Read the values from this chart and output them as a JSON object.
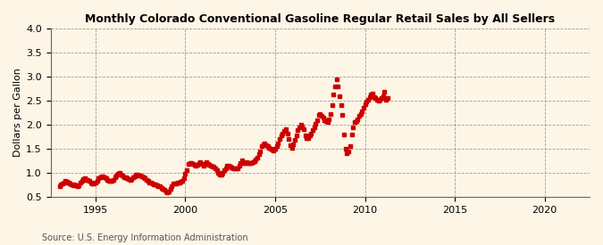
{
  "title": "Monthly Colorado Conventional Gasoline Regular Retail Sales by All Sellers",
  "ylabel": "Dollars per Gallon",
  "source": "Source: U.S. Energy Information Administration",
  "bg_color": "#fdf5e6",
  "marker_color": "#cc0000",
  "xlim": [
    1992.5,
    2022.5
  ],
  "ylim": [
    0.5,
    4.0
  ],
  "yticks": [
    0.5,
    1.0,
    1.5,
    2.0,
    2.5,
    3.0,
    3.5,
    4.0
  ],
  "xticks": [
    1995,
    2000,
    2005,
    2010,
    2015,
    2020
  ],
  "data_decimal": [
    [
      1993.0,
      0.72
    ],
    [
      1993.08,
      0.76
    ],
    [
      1993.17,
      0.78
    ],
    [
      1993.25,
      0.8
    ],
    [
      1993.33,
      0.83
    ],
    [
      1993.42,
      0.82
    ],
    [
      1993.5,
      0.8
    ],
    [
      1993.58,
      0.78
    ],
    [
      1993.67,
      0.76
    ],
    [
      1993.75,
      0.75
    ],
    [
      1993.83,
      0.76
    ],
    [
      1993.92,
      0.74
    ],
    [
      1994.0,
      0.73
    ],
    [
      1994.08,
      0.75
    ],
    [
      1994.17,
      0.79
    ],
    [
      1994.25,
      0.83
    ],
    [
      1994.33,
      0.87
    ],
    [
      1994.42,
      0.88
    ],
    [
      1994.5,
      0.86
    ],
    [
      1994.58,
      0.85
    ],
    [
      1994.67,
      0.83
    ],
    [
      1994.75,
      0.8
    ],
    [
      1994.83,
      0.78
    ],
    [
      1994.92,
      0.77
    ],
    [
      1995.0,
      0.8
    ],
    [
      1995.08,
      0.84
    ],
    [
      1995.17,
      0.88
    ],
    [
      1995.25,
      0.91
    ],
    [
      1995.33,
      0.93
    ],
    [
      1995.42,
      0.92
    ],
    [
      1995.5,
      0.9
    ],
    [
      1995.58,
      0.88
    ],
    [
      1995.67,
      0.85
    ],
    [
      1995.75,
      0.84
    ],
    [
      1995.83,
      0.84
    ],
    [
      1995.92,
      0.83
    ],
    [
      1996.0,
      0.86
    ],
    [
      1996.08,
      0.9
    ],
    [
      1996.17,
      0.95
    ],
    [
      1996.25,
      0.99
    ],
    [
      1996.33,
      1.0
    ],
    [
      1996.42,
      0.97
    ],
    [
      1996.5,
      0.94
    ],
    [
      1996.58,
      0.91
    ],
    [
      1996.67,
      0.9
    ],
    [
      1996.75,
      0.88
    ],
    [
      1996.83,
      0.87
    ],
    [
      1996.92,
      0.85
    ],
    [
      1997.0,
      0.87
    ],
    [
      1997.08,
      0.9
    ],
    [
      1997.17,
      0.92
    ],
    [
      1997.25,
      0.96
    ],
    [
      1997.33,
      0.97
    ],
    [
      1997.42,
      0.95
    ],
    [
      1997.5,
      0.94
    ],
    [
      1997.58,
      0.93
    ],
    [
      1997.67,
      0.91
    ],
    [
      1997.75,
      0.88
    ],
    [
      1997.83,
      0.86
    ],
    [
      1997.92,
      0.83
    ],
    [
      1998.0,
      0.8
    ],
    [
      1998.08,
      0.79
    ],
    [
      1998.17,
      0.78
    ],
    [
      1998.25,
      0.76
    ],
    [
      1998.33,
      0.76
    ],
    [
      1998.42,
      0.75
    ],
    [
      1998.5,
      0.73
    ],
    [
      1998.58,
      0.72
    ],
    [
      1998.67,
      0.69
    ],
    [
      1998.75,
      0.67
    ],
    [
      1998.83,
      0.65
    ],
    [
      1998.92,
      0.62
    ],
    [
      1999.0,
      0.6
    ],
    [
      1999.08,
      0.62
    ],
    [
      1999.17,
      0.66
    ],
    [
      1999.25,
      0.72
    ],
    [
      1999.33,
      0.77
    ],
    [
      1999.42,
      0.78
    ],
    [
      1999.5,
      0.78
    ],
    [
      1999.58,
      0.79
    ],
    [
      1999.67,
      0.8
    ],
    [
      1999.75,
      0.82
    ],
    [
      1999.83,
      0.84
    ],
    [
      1999.92,
      0.88
    ],
    [
      2000.0,
      0.98
    ],
    [
      2000.08,
      1.06
    ],
    [
      2000.17,
      1.18
    ],
    [
      2000.25,
      1.2
    ],
    [
      2000.33,
      1.21
    ],
    [
      2000.42,
      1.18
    ],
    [
      2000.5,
      1.16
    ],
    [
      2000.58,
      1.15
    ],
    [
      2000.67,
      1.17
    ],
    [
      2000.75,
      1.2
    ],
    [
      2000.83,
      1.22
    ],
    [
      2000.92,
      1.18
    ],
    [
      2001.0,
      1.14
    ],
    [
      2001.08,
      1.18
    ],
    [
      2001.17,
      1.22
    ],
    [
      2001.25,
      1.19
    ],
    [
      2001.33,
      1.17
    ],
    [
      2001.42,
      1.15
    ],
    [
      2001.5,
      1.13
    ],
    [
      2001.58,
      1.13
    ],
    [
      2001.67,
      1.1
    ],
    [
      2001.75,
      1.05
    ],
    [
      2001.83,
      1.0
    ],
    [
      2001.92,
      0.97
    ],
    [
      2002.0,
      0.97
    ],
    [
      2002.08,
      1.0
    ],
    [
      2002.17,
      1.05
    ],
    [
      2002.25,
      1.1
    ],
    [
      2002.33,
      1.14
    ],
    [
      2002.42,
      1.15
    ],
    [
      2002.5,
      1.13
    ],
    [
      2002.58,
      1.12
    ],
    [
      2002.67,
      1.1
    ],
    [
      2002.75,
      1.09
    ],
    [
      2002.83,
      1.09
    ],
    [
      2002.92,
      1.1
    ],
    [
      2003.0,
      1.14
    ],
    [
      2003.08,
      1.2
    ],
    [
      2003.17,
      1.26
    ],
    [
      2003.25,
      1.21
    ],
    [
      2003.33,
      1.2
    ],
    [
      2003.42,
      1.23
    ],
    [
      2003.5,
      1.21
    ],
    [
      2003.58,
      1.2
    ],
    [
      2003.67,
      1.2
    ],
    [
      2003.75,
      1.22
    ],
    [
      2003.83,
      1.24
    ],
    [
      2003.92,
      1.28
    ],
    [
      2004.0,
      1.32
    ],
    [
      2004.08,
      1.38
    ],
    [
      2004.17,
      1.45
    ],
    [
      2004.25,
      1.55
    ],
    [
      2004.33,
      1.6
    ],
    [
      2004.42,
      1.62
    ],
    [
      2004.5,
      1.58
    ],
    [
      2004.58,
      1.55
    ],
    [
      2004.67,
      1.52
    ],
    [
      2004.75,
      1.5
    ],
    [
      2004.83,
      1.49
    ],
    [
      2004.92,
      1.46
    ],
    [
      2005.0,
      1.5
    ],
    [
      2005.08,
      1.55
    ],
    [
      2005.17,
      1.62
    ],
    [
      2005.25,
      1.7
    ],
    [
      2005.33,
      1.78
    ],
    [
      2005.42,
      1.82
    ],
    [
      2005.5,
      1.87
    ],
    [
      2005.58,
      1.9
    ],
    [
      2005.67,
      1.82
    ],
    [
      2005.75,
      1.7
    ],
    [
      2005.83,
      1.58
    ],
    [
      2005.92,
      1.52
    ],
    [
      2006.0,
      1.6
    ],
    [
      2006.08,
      1.68
    ],
    [
      2006.17,
      1.77
    ],
    [
      2006.25,
      1.88
    ],
    [
      2006.33,
      1.95
    ],
    [
      2006.42,
      2.0
    ],
    [
      2006.5,
      1.97
    ],
    [
      2006.58,
      1.9
    ],
    [
      2006.67,
      1.78
    ],
    [
      2006.75,
      1.72
    ],
    [
      2006.83,
      1.73
    ],
    [
      2006.92,
      1.77
    ],
    [
      2007.0,
      1.82
    ],
    [
      2007.08,
      1.88
    ],
    [
      2007.17,
      1.95
    ],
    [
      2007.25,
      2.02
    ],
    [
      2007.33,
      2.1
    ],
    [
      2007.42,
      2.2
    ],
    [
      2007.5,
      2.22
    ],
    [
      2007.58,
      2.18
    ],
    [
      2007.67,
      2.14
    ],
    [
      2007.75,
      2.1
    ],
    [
      2007.83,
      2.08
    ],
    [
      2007.92,
      2.05
    ],
    [
      2008.0,
      2.12
    ],
    [
      2008.08,
      2.22
    ],
    [
      2008.17,
      2.4
    ],
    [
      2008.25,
      2.62
    ],
    [
      2008.33,
      2.8
    ],
    [
      2008.42,
      2.95
    ],
    [
      2008.5,
      2.8
    ],
    [
      2008.58,
      2.6
    ],
    [
      2008.67,
      2.4
    ],
    [
      2008.75,
      2.2
    ],
    [
      2008.83,
      1.8
    ],
    [
      2008.92,
      1.5
    ],
    [
      2009.0,
      1.4
    ],
    [
      2009.08,
      1.45
    ],
    [
      2009.17,
      1.55
    ],
    [
      2009.25,
      1.8
    ],
    [
      2009.33,
      1.95
    ],
    [
      2009.42,
      2.05
    ],
    [
      2009.5,
      2.08
    ],
    [
      2009.58,
      2.12
    ],
    [
      2009.67,
      2.18
    ],
    [
      2009.75,
      2.22
    ],
    [
      2009.83,
      2.28
    ],
    [
      2009.92,
      2.35
    ],
    [
      2010.0,
      2.42
    ],
    [
      2010.08,
      2.48
    ],
    [
      2010.17,
      2.52
    ],
    [
      2010.25,
      2.58
    ],
    [
      2010.33,
      2.62
    ],
    [
      2010.42,
      2.65
    ],
    [
      2010.5,
      2.58
    ],
    [
      2010.58,
      2.55
    ],
    [
      2010.67,
      2.52
    ],
    [
      2010.75,
      2.5
    ],
    [
      2010.83,
      2.52
    ],
    [
      2010.92,
      2.55
    ],
    [
      2011.0,
      2.6
    ],
    [
      2011.08,
      2.68
    ],
    [
      2011.17,
      2.52
    ],
    [
      2011.25,
      2.55
    ]
  ]
}
